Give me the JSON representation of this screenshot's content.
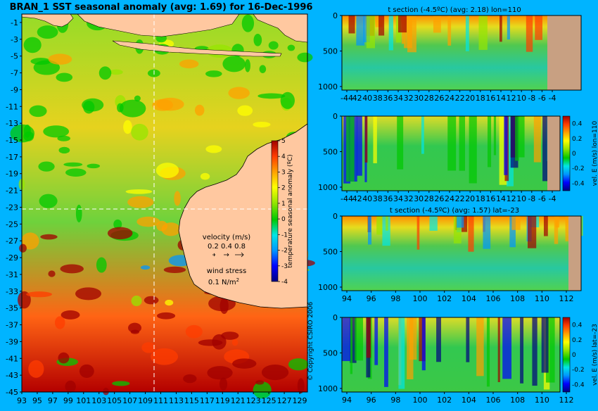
{
  "figure": {
    "title": "BRAN_1  SST seasonal anomaly (avg: 1.69) for 16-Dec-1996",
    "copyright": "© Copyright CSIRO 2006"
  },
  "legend": {
    "velocity_title": "velocity (m/s)",
    "velocity_values": "0.2 0.4 0.8",
    "wind_title": "wind stress",
    "wind_value": "0.1 N/m",
    "wind_exp": "2"
  },
  "colors": {
    "background": "#00b4ff",
    "land": "#ffc8a0",
    "bottom": "#c8a082",
    "scale": [
      "#000080",
      "#0000ff",
      "#0096ff",
      "#00e6e6",
      "#00c800",
      "#96e600",
      "#ffff00",
      "#ffa000",
      "#ff3c00",
      "#a00000"
    ]
  },
  "chart_data": [
    {
      "id": "map",
      "type": "heatmap",
      "title": "BRAN_1  SST seasonal anomaly (avg: 1.69) for 16-Dec-1996",
      "x_ticks": [
        "93",
        "95",
        "97",
        "99",
        "101",
        "103",
        "105",
        "107",
        "109",
        "111",
        "113",
        "115",
        "117",
        "119",
        "121",
        "123",
        "125",
        "127",
        "129"
      ],
      "y_ticks": [
        "-1",
        "-3",
        "-5",
        "-7",
        "-9",
        "-11",
        "-13",
        "-15",
        "-17",
        "-19",
        "-21",
        "-23",
        "-25",
        "-27",
        "-29",
        "-31",
        "-33",
        "-35",
        "-37",
        "-39",
        "-41",
        "-43",
        "-45"
      ],
      "xlim": [
        93,
        130
      ],
      "ylim": [
        -45,
        0
      ],
      "colorbar": {
        "label": "temperature seasonal anomaly (ºC)",
        "ticks": [
          "5",
          "4",
          "3",
          "2",
          "1",
          "0",
          "-1",
          "-2",
          "-3",
          "-4"
        ],
        "range": [
          -4,
          5
        ]
      }
    },
    {
      "id": "t-section-lon",
      "type": "heatmap",
      "title": "t section (-4.5ºC) (avg: 2.18) lon=110",
      "x_ticks": [
        "-44",
        "42",
        "40",
        "38",
        "36",
        "34",
        "32",
        "30",
        "28",
        "26",
        "24",
        "22",
        "20",
        "18",
        "16",
        "14",
        "12",
        "10",
        "-8",
        "-6",
        "-4"
      ],
      "y_ticks": [
        "0",
        "500",
        "1000"
      ],
      "xlim": [
        -45,
        -2
      ],
      "ylim": [
        1050,
        0
      ]
    },
    {
      "id": "vel-section-lon",
      "type": "heatmap",
      "title": "",
      "x_ticks": [
        "-44",
        "42",
        "40",
        "38",
        "36",
        "34",
        "32",
        "30",
        "28",
        "26",
        "24",
        "22",
        "20",
        "18",
        "16",
        "14",
        "12",
        "10",
        "-8",
        "-6",
        "-4"
      ],
      "y_ticks": [
        "0",
        "500",
        "1000"
      ],
      "xlim": [
        -45,
        -2
      ],
      "ylim": [
        1050,
        0
      ],
      "colorbar": {
        "label": "vel. E (m/s) lon=110",
        "ticks": [
          "0.4",
          "0.2",
          "0",
          "-0.2",
          "-0.4"
        ],
        "range": [
          -0.5,
          0.5
        ]
      }
    },
    {
      "id": "t-section-lat",
      "type": "heatmap",
      "title": "t section (-4.5ºC) (avg: 1.57) lat=-23",
      "x_ticks": [
        "94",
        "96",
        "98",
        "100",
        "102",
        "104",
        "106",
        "108",
        "110",
        "112"
      ],
      "y_ticks": [
        "0",
        "500",
        "1000"
      ],
      "xlim": [
        93,
        114
      ],
      "ylim": [
        1050,
        0
      ]
    },
    {
      "id": "vel-section-lat",
      "type": "heatmap",
      "title": "",
      "x_ticks": [
        "94",
        "96",
        "98",
        "100",
        "102",
        "104",
        "106",
        "108",
        "110",
        "112"
      ],
      "y_ticks": [
        "0",
        "500",
        "1000"
      ],
      "xlim": [
        93,
        114
      ],
      "ylim": [
        1050,
        0
      ],
      "colorbar": {
        "label": "vel. E (m/s) lat=-23",
        "ticks": [
          "0.4",
          "0.2",
          "0",
          "-0.2",
          "-0.4"
        ],
        "range": [
          -0.5,
          0.5
        ]
      }
    }
  ]
}
